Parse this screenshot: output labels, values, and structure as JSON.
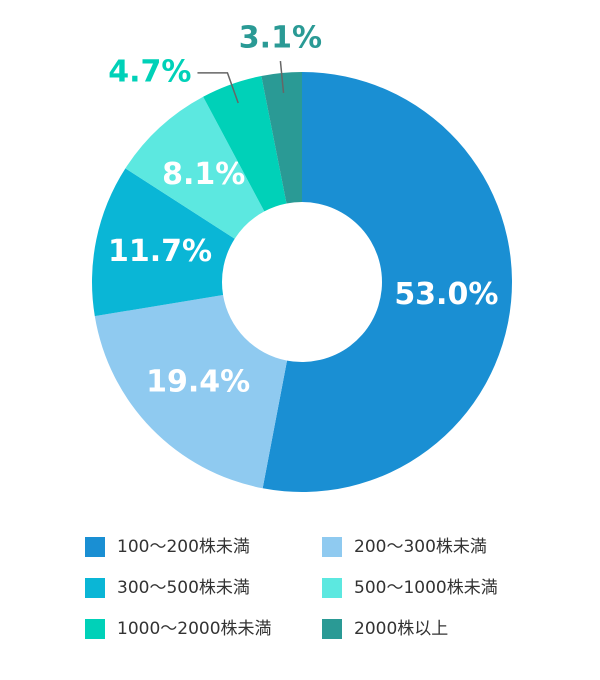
{
  "chart_data": {
    "type": "donut",
    "series": [
      {
        "name": "100〜200株未満",
        "color": "#1a8fd3",
        "value": 53.0,
        "value_label": "53.0%"
      },
      {
        "name": "200〜300株未満",
        "color": "#8fcaf0",
        "value": 19.4,
        "value_label": "19.4%"
      },
      {
        "name": "300〜500株未満",
        "color": "#0ab6d6",
        "value": 11.7,
        "value_label": "11.7%"
      },
      {
        "name": "500〜1000株未満",
        "color": "#5ce8e0",
        "value": 8.1,
        "value_label": "8.1%"
      },
      {
        "name": "1000〜2000株未満",
        "color": "#00d1b8",
        "value": 4.7,
        "value_label": "4.7%"
      },
      {
        "name": "2000株以上",
        "color": "#2a9a95",
        "value": 3.1,
        "value_label": "3.1%"
      }
    ]
  }
}
